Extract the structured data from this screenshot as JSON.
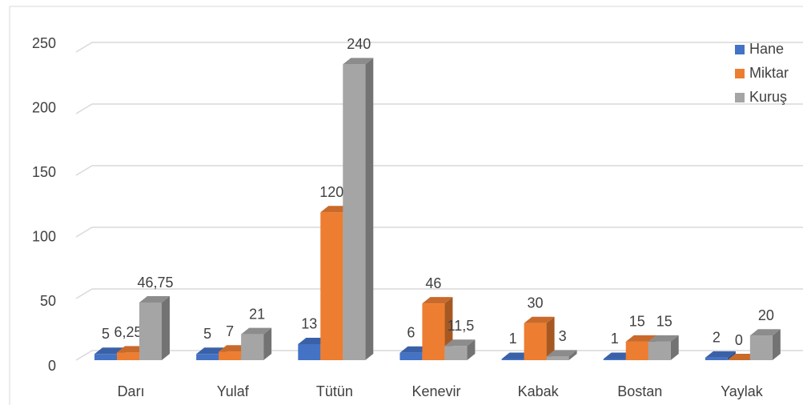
{
  "chart_data": {
    "type": "bar3d",
    "categories": [
      "Darı",
      "Yulaf",
      "Tütün",
      "Kenevir",
      "Kabak",
      "Bostan",
      "Yaylak"
    ],
    "series": [
      {
        "name": "Hane",
        "color": "#4472c4",
        "values": [
          5,
          5,
          13,
          6,
          1,
          1,
          2
        ]
      },
      {
        "name": "Miktar",
        "color": "#ed7d31",
        "values": [
          6.25,
          7,
          120,
          46,
          30,
          15,
          0
        ],
        "value_labels": [
          "6,25",
          "7",
          "120",
          "46",
          "30",
          "15",
          "0"
        ]
      },
      {
        "name": "Kuruş",
        "color": "#a5a5a5",
        "values": [
          46.75,
          21,
          240,
          11.5,
          3,
          15,
          20
        ],
        "value_labels": [
          "46,75",
          "21",
          "240",
          "11,5",
          "3",
          "15",
          "20"
        ]
      }
    ],
    "ylim": [
      0,
      250
    ],
    "yticks": [
      0,
      50,
      100,
      150,
      200,
      250
    ],
    "grid": true,
    "legend": "top-right"
  }
}
